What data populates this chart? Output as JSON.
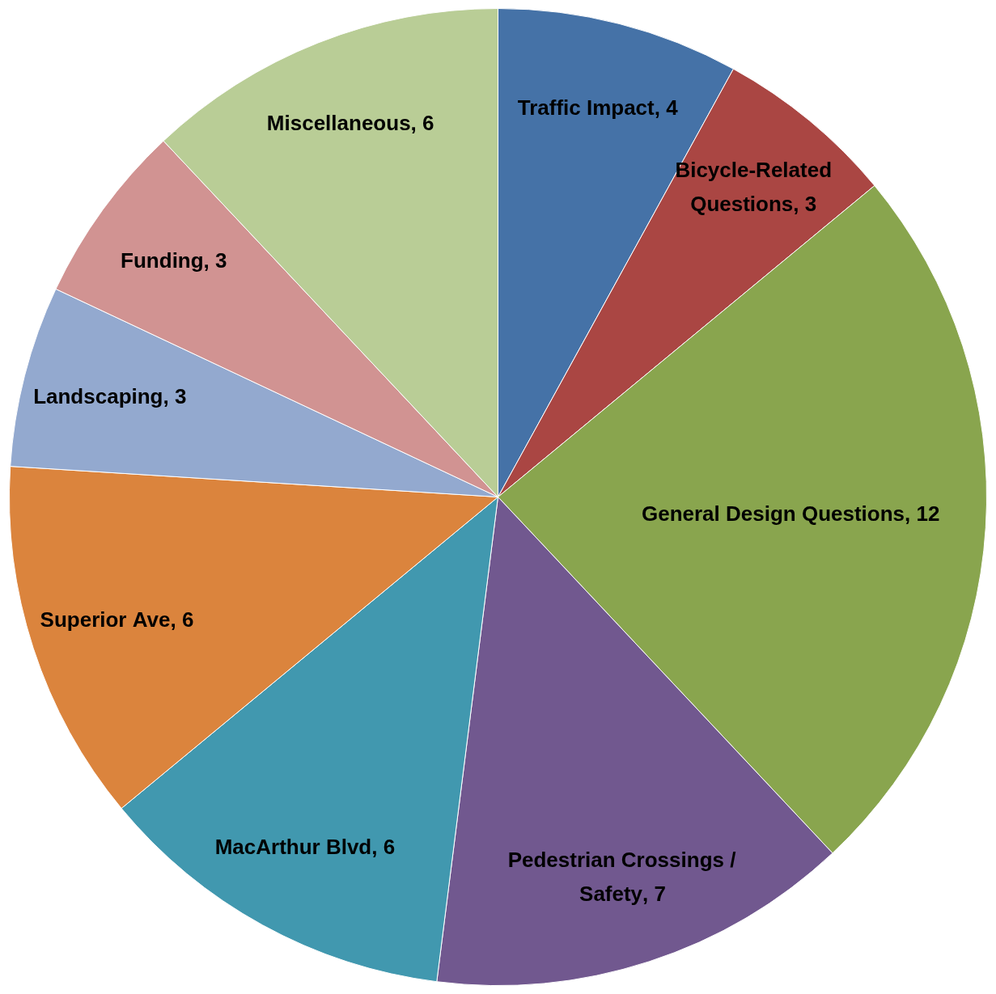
{
  "chart_data": {
    "type": "pie",
    "categories": [
      "Traffic Impact",
      "Bicycle-Related Questions",
      "General Design Questions",
      "Pedestrian Crossings / Safety",
      "MacArthur Blvd",
      "Superior Ave",
      "Landscaping",
      "Funding",
      "Miscellaneous"
    ],
    "values": [
      4,
      3,
      12,
      7,
      6,
      6,
      3,
      3,
      6
    ],
    "value_labels": [
      ", 4",
      ", 3",
      ", 12",
      ", 7",
      ", 6",
      ", 6",
      ", 3",
      ", 3",
      ", 6"
    ],
    "colors": [
      "#4572a7",
      "#aa4643",
      "#89a54e",
      "#71588f",
      "#4198af",
      "#db843d",
      "#93a9cf",
      "#d19392",
      "#b9cd96"
    ],
    "legend": false
  }
}
